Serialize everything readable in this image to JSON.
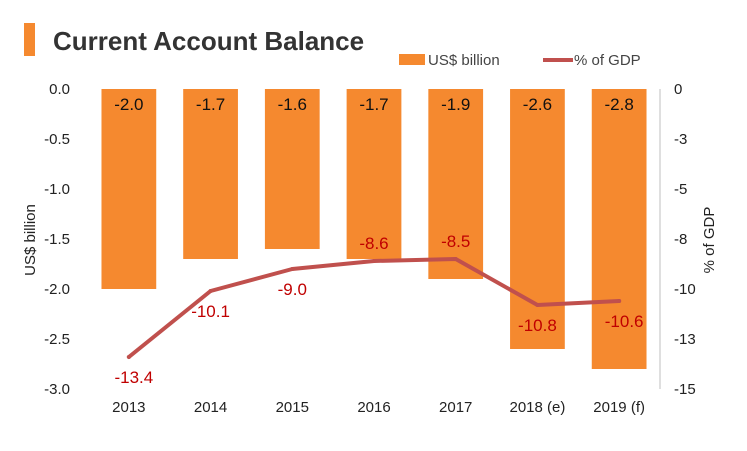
{
  "chart_data": {
    "type": "bar",
    "title": "Current Account Balance",
    "categories": [
      "2013",
      "2014",
      "2015",
      "2016",
      "2017",
      "2018 (e)",
      "2019 (f)"
    ],
    "series": [
      {
        "name": "US$ billion",
        "type": "bar",
        "axis": "left",
        "values": [
          -2.0,
          -1.7,
          -1.6,
          -1.7,
          -1.9,
          -2.6,
          -2.8
        ],
        "color": "#F5892F",
        "labels": [
          "-2.0",
          "-1.7",
          "-1.6",
          "-1.7",
          "-1.9",
          "-2.6",
          "-2.8"
        ]
      },
      {
        "name": "% of GDP",
        "type": "line",
        "axis": "right",
        "values": [
          -13.4,
          -10.1,
          -9.0,
          -8.6,
          -8.5,
          -10.8,
          -10.6
        ],
        "color": "#C0504D",
        "labels": [
          "-13.4",
          "-10.1",
          "-9.0",
          "-8.6",
          "-8.5",
          "-10.8",
          "-10.6"
        ]
      }
    ],
    "ylabel": "US$ billion",
    "ylabel_right": "% of GDP",
    "ylim": [
      -3.0,
      0.0
    ],
    "yticks": [
      "0.0",
      "-0.5",
      "-1.0",
      "-1.5",
      "-2.0",
      "-2.5",
      "-3.0"
    ],
    "ylim_right": [
      -15,
      0
    ],
    "yticks_right": [
      "0",
      "-3",
      "-5",
      "-8",
      "-10",
      "-13",
      "-15"
    ],
    "line_label_color": "#C00000",
    "title_marker_color": "#F5892F",
    "grid": false,
    "legend_position": "top-right"
  }
}
